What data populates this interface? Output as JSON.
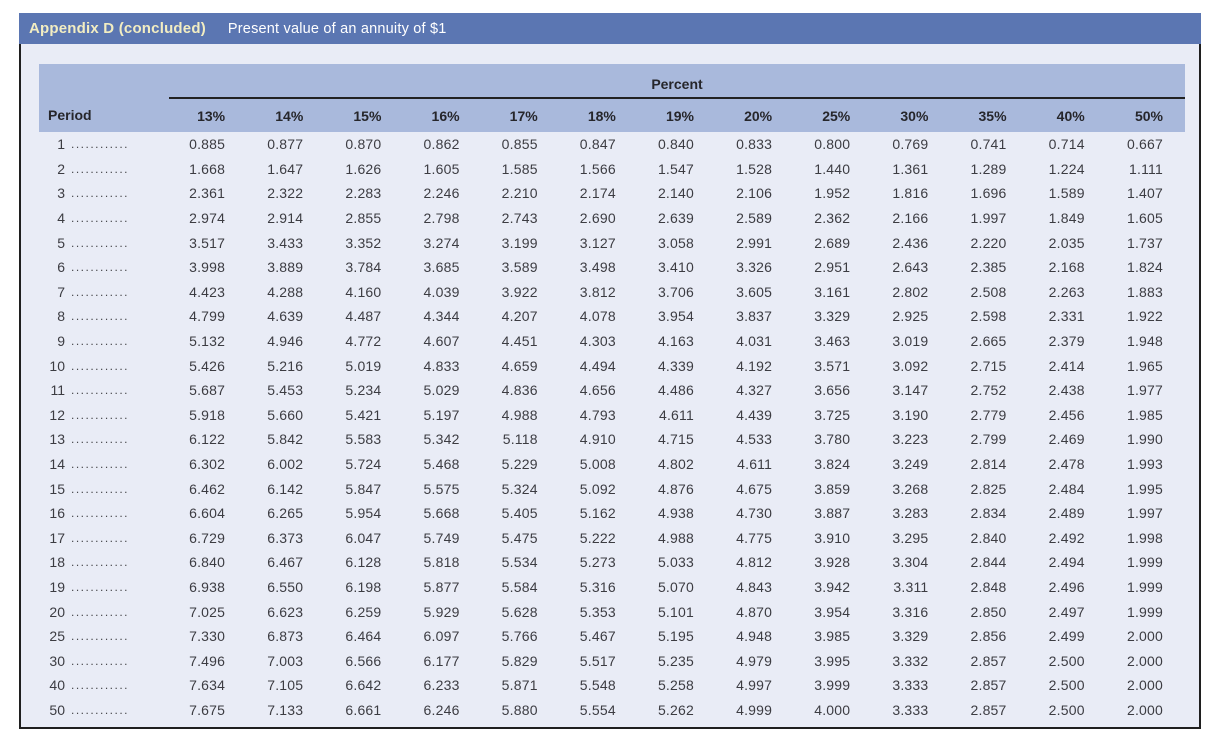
{
  "header": {
    "title": "Appendix D (concluded)",
    "subtitle": "Present value of an annuity of $1"
  },
  "table": {
    "group_header": "Percent",
    "period_label": "Period",
    "dot_leader": "......................",
    "rate_headers": [
      "13%",
      "14%",
      "15%",
      "16%",
      "17%",
      "18%",
      "19%",
      "20%",
      "25%",
      "30%",
      "35%",
      "40%",
      "50%"
    ],
    "rows": [
      {
        "period": "1",
        "values": [
          "0.885",
          "0.877",
          "0.870",
          "0.862",
          "0.855",
          "0.847",
          "0.840",
          "0.833",
          "0.800",
          "0.769",
          "0.741",
          "0.714",
          "0.667"
        ]
      },
      {
        "period": "2",
        "values": [
          "1.668",
          "1.647",
          "1.626",
          "1.605",
          "1.585",
          "1.566",
          "1.547",
          "1.528",
          "1.440",
          "1.361",
          "1.289",
          "1.224",
          "1.111"
        ]
      },
      {
        "period": "3",
        "values": [
          "2.361",
          "2.322",
          "2.283",
          "2.246",
          "2.210",
          "2.174",
          "2.140",
          "2.106",
          "1.952",
          "1.816",
          "1.696",
          "1.589",
          "1.407"
        ]
      },
      {
        "period": "4",
        "values": [
          "2.974",
          "2.914",
          "2.855",
          "2.798",
          "2.743",
          "2.690",
          "2.639",
          "2.589",
          "2.362",
          "2.166",
          "1.997",
          "1.849",
          "1.605"
        ]
      },
      {
        "period": "5",
        "values": [
          "3.517",
          "3.433",
          "3.352",
          "3.274",
          "3.199",
          "3.127",
          "3.058",
          "2.991",
          "2.689",
          "2.436",
          "2.220",
          "2.035",
          "1.737"
        ]
      },
      {
        "period": "6",
        "values": [
          "3.998",
          "3.889",
          "3.784",
          "3.685",
          "3.589",
          "3.498",
          "3.410",
          "3.326",
          "2.951",
          "2.643",
          "2.385",
          "2.168",
          "1.824"
        ]
      },
      {
        "period": "7",
        "values": [
          "4.423",
          "4.288",
          "4.160",
          "4.039",
          "3.922",
          "3.812",
          "3.706",
          "3.605",
          "3.161",
          "2.802",
          "2.508",
          "2.263",
          "1.883"
        ]
      },
      {
        "period": "8",
        "values": [
          "4.799",
          "4.639",
          "4.487",
          "4.344",
          "4.207",
          "4.078",
          "3.954",
          "3.837",
          "3.329",
          "2.925",
          "2.598",
          "2.331",
          "1.922"
        ]
      },
      {
        "period": "9",
        "values": [
          "5.132",
          "4.946",
          "4.772",
          "4.607",
          "4.451",
          "4.303",
          "4.163",
          "4.031",
          "3.463",
          "3.019",
          "2.665",
          "2.379",
          "1.948"
        ]
      },
      {
        "period": "10",
        "values": [
          "5.426",
          "5.216",
          "5.019",
          "4.833",
          "4.659",
          "4.494",
          "4.339",
          "4.192",
          "3.571",
          "3.092",
          "2.715",
          "2.414",
          "1.965"
        ]
      },
      {
        "period": "11",
        "values": [
          "5.687",
          "5.453",
          "5.234",
          "5.029",
          "4.836",
          "4.656",
          "4.486",
          "4.327",
          "3.656",
          "3.147",
          "2.752",
          "2.438",
          "1.977"
        ]
      },
      {
        "period": "12",
        "values": [
          "5.918",
          "5.660",
          "5.421",
          "5.197",
          "4.988",
          "4.793",
          "4.611",
          "4.439",
          "3.725",
          "3.190",
          "2.779",
          "2.456",
          "1.985"
        ]
      },
      {
        "period": "13",
        "values": [
          "6.122",
          "5.842",
          "5.583",
          "5.342",
          "5.118",
          "4.910",
          "4.715",
          "4.533",
          "3.780",
          "3.223",
          "2.799",
          "2.469",
          "1.990"
        ]
      },
      {
        "period": "14",
        "values": [
          "6.302",
          "6.002",
          "5.724",
          "5.468",
          "5.229",
          "5.008",
          "4.802",
          "4.611",
          "3.824",
          "3.249",
          "2.814",
          "2.478",
          "1.993"
        ]
      },
      {
        "period": "15",
        "values": [
          "6.462",
          "6.142",
          "5.847",
          "5.575",
          "5.324",
          "5.092",
          "4.876",
          "4.675",
          "3.859",
          "3.268",
          "2.825",
          "2.484",
          "1.995"
        ]
      },
      {
        "period": "16",
        "values": [
          "6.604",
          "6.265",
          "5.954",
          "5.668",
          "5.405",
          "5.162",
          "4.938",
          "4.730",
          "3.887",
          "3.283",
          "2.834",
          "2.489",
          "1.997"
        ]
      },
      {
        "period": "17",
        "values": [
          "6.729",
          "6.373",
          "6.047",
          "5.749",
          "5.475",
          "5.222",
          "4.988",
          "4.775",
          "3.910",
          "3.295",
          "2.840",
          "2.492",
          "1.998"
        ]
      },
      {
        "period": "18",
        "values": [
          "6.840",
          "6.467",
          "6.128",
          "5.818",
          "5.534",
          "5.273",
          "5.033",
          "4.812",
          "3.928",
          "3.304",
          "2.844",
          "2.494",
          "1.999"
        ]
      },
      {
        "period": "19",
        "values": [
          "6.938",
          "6.550",
          "6.198",
          "5.877",
          "5.584",
          "5.316",
          "5.070",
          "4.843",
          "3.942",
          "3.311",
          "2.848",
          "2.496",
          "1.999"
        ]
      },
      {
        "period": "20",
        "values": [
          "7.025",
          "6.623",
          "6.259",
          "5.929",
          "5.628",
          "5.353",
          "5.101",
          "4.870",
          "3.954",
          "3.316",
          "2.850",
          "2.497",
          "1.999"
        ]
      },
      {
        "period": "25",
        "values": [
          "7.330",
          "6.873",
          "6.464",
          "6.097",
          "5.766",
          "5.467",
          "5.195",
          "4.948",
          "3.985",
          "3.329",
          "2.856",
          "2.499",
          "2.000"
        ]
      },
      {
        "period": "30",
        "values": [
          "7.496",
          "7.003",
          "6.566",
          "6.177",
          "5.829",
          "5.517",
          "5.235",
          "4.979",
          "3.995",
          "3.332",
          "2.857",
          "2.500",
          "2.000"
        ]
      },
      {
        "period": "40",
        "values": [
          "7.634",
          "7.105",
          "6.642",
          "6.233",
          "5.871",
          "5.548",
          "5.258",
          "4.997",
          "3.999",
          "3.333",
          "2.857",
          "2.500",
          "2.000"
        ]
      },
      {
        "period": "50",
        "values": [
          "7.675",
          "7.133",
          "6.661",
          "6.246",
          "5.880",
          "5.554",
          "5.262",
          "4.999",
          "4.000",
          "3.333",
          "2.857",
          "2.500",
          "2.000"
        ]
      }
    ]
  },
  "colors": {
    "title_bar": "#5b76b2",
    "title_text": "#f2edc2",
    "subtitle_text": "#ffffff",
    "header_panel": "#a9b9dc",
    "body_background": "#e9ecf6",
    "border": "#1f1f1f",
    "text": "#3c3c42"
  }
}
